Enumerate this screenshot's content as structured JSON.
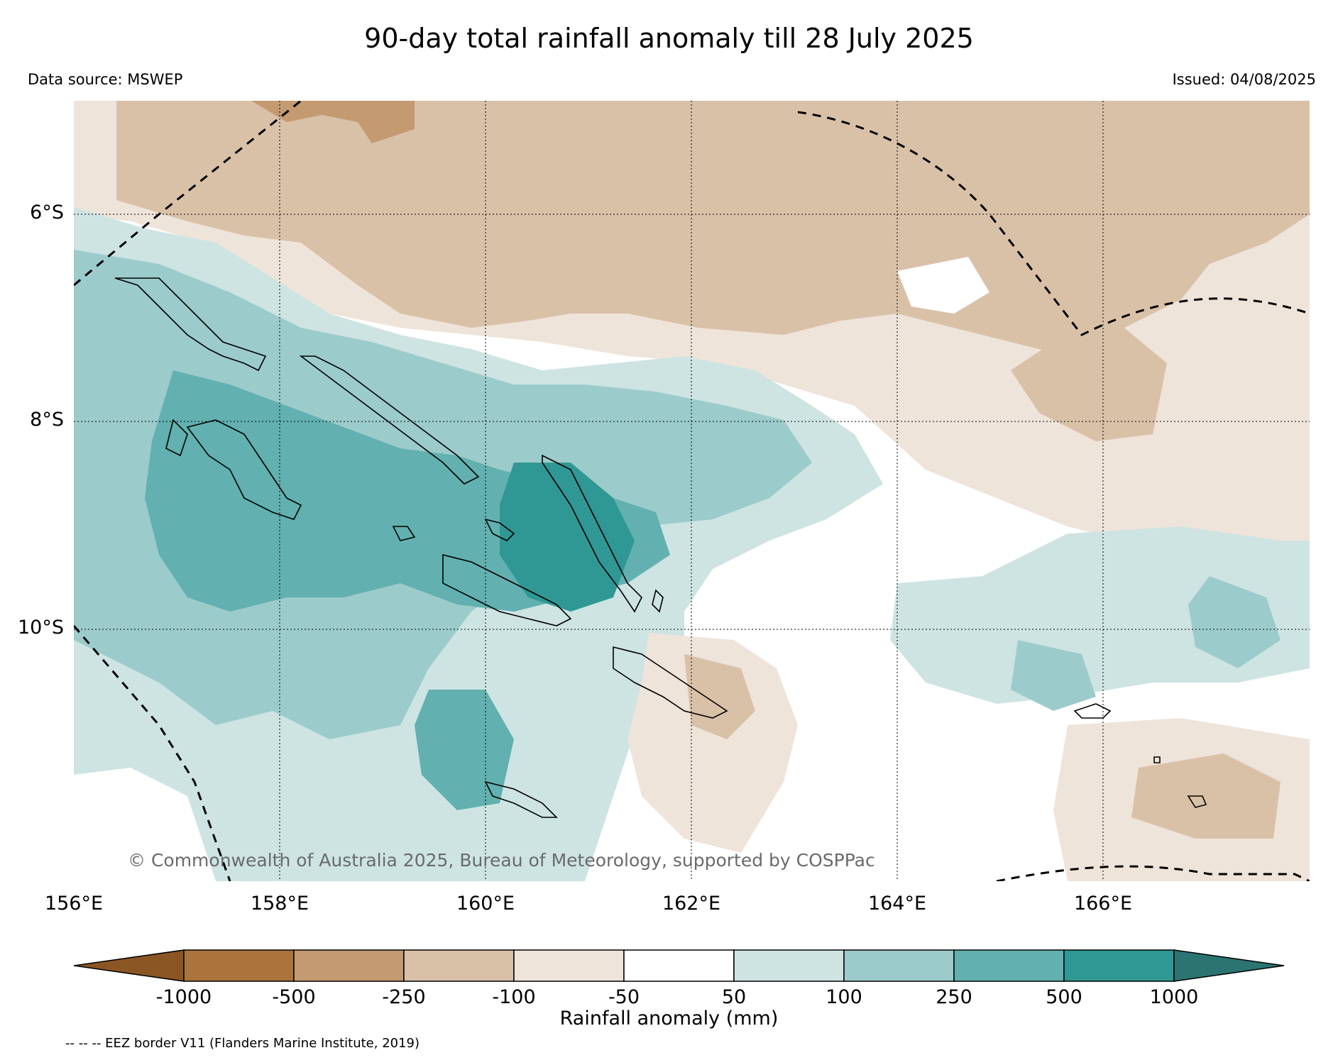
{
  "title": "90-day total rainfall anomaly till 28 July 2025",
  "data_source": "Data source: MSWEP",
  "issued": "Issued: 04/08/2025",
  "copyright": "© Commonwealth of Australia 2025, Bureau of Meteorology, supported by COSPPac",
  "lat_labels": [
    "6°S",
    "8°S",
    "10°S"
  ],
  "lon_labels": [
    "156°E",
    "158°E",
    "160°E",
    "162°E",
    "164°E",
    "166°E"
  ],
  "colorbar": {
    "title": "Rainfall anomaly (mm)",
    "ticks": [
      "-1000",
      "-500",
      "-250",
      "-100",
      "-50",
      "50",
      "100",
      "250",
      "500",
      "1000"
    ],
    "colors": [
      "#8c5624",
      "#ab743d",
      "#c49a70",
      "#d9c1a8",
      "#efe4da",
      "#ffffff",
      "#cde4e3",
      "#9ccbcb",
      "#62b0b0",
      "#2f9894",
      "#2b7472"
    ]
  },
  "legend_note": "-- -- -- EEZ border V11 (Flanders Marine Institute, 2019)"
}
